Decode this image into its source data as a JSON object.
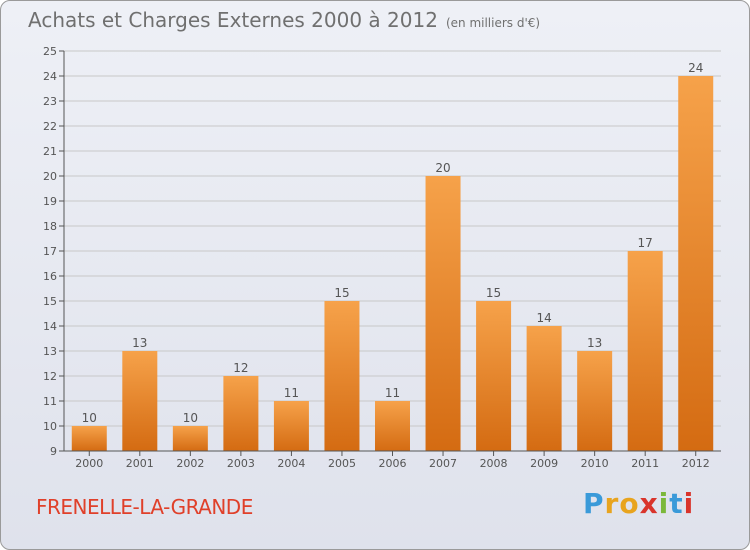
{
  "title": "Achats et Charges Externes 2000 à 2012",
  "unit_label": "(en milliers d'€)",
  "commune": "FRENELLE-LA-GRANDE",
  "brand": {
    "letters": [
      "P",
      "r",
      "o",
      "x",
      "i",
      "t",
      "i"
    ],
    "colors": [
      "#3a9ad9",
      "#e8a41e",
      "#e8a41e",
      "#d9342b",
      "#7bb83a",
      "#3a9ad9",
      "#d9342b"
    ]
  },
  "colors": {
    "bar_top": "#f6a24a",
    "bar_bottom": "#d46b12",
    "axis": "#555555",
    "grid": "#c8c8c8"
  },
  "chart_data": {
    "type": "bar",
    "title": "Achats et Charges Externes 2000 à 2012",
    "categories": [
      "2000",
      "2001",
      "2002",
      "2003",
      "2004",
      "2005",
      "2006",
      "2007",
      "2008",
      "2009",
      "2010",
      "2011",
      "2012"
    ],
    "values": [
      10,
      13,
      10,
      12,
      11,
      15,
      11,
      20,
      15,
      14,
      13,
      17,
      24
    ],
    "yticks": [
      9,
      10,
      11,
      12,
      13,
      14,
      15,
      16,
      17,
      18,
      19,
      20,
      21,
      22,
      23,
      24,
      25
    ],
    "ylim": [
      9,
      25
    ],
    "grid": true,
    "data_labels": true
  }
}
